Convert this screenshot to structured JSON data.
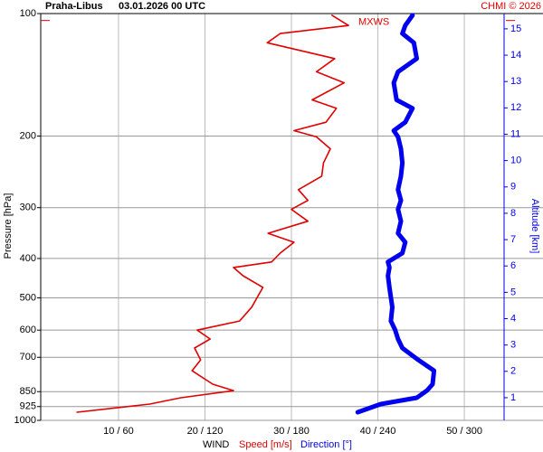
{
  "chart_data": {
    "type": "wind-profile",
    "station": "Praha-Libus",
    "title": "03.01.2026 00 UTC",
    "credit": "CHMI © 2026",
    "ylabel": "Pressure [hPa]",
    "y2label": "Altitude [km]",
    "xlabel": "WIND",
    "log_y": true,
    "grid": true,
    "y": [
      955,
      912,
      880,
      845,
      815,
      755,
      710,
      664,
      631,
      600,
      570,
      527,
      471,
      441,
      421,
      408,
      388,
      365,
      347,
      324,
      303,
      288,
      271,
      251,
      233,
      215,
      201,
      194,
      185,
      171,
      163,
      148,
      139,
      129,
      118,
      112,
      107,
      101
    ],
    "series": [
      {
        "name": "Speed [m/s]",
        "color": "#e00000",
        "values": [
          5.2,
          13.6,
          17.2,
          23.3,
          20.9,
          18.5,
          19.5,
          18.8,
          20.6,
          19.1,
          24.0,
          25.4,
          26.7,
          24.4,
          23.3,
          27.7,
          28.7,
          30.3,
          27.3,
          31.9,
          30.0,
          31.9,
          30.8,
          33.5,
          33.7,
          34.5,
          32.9,
          30.3,
          34.0,
          35.2,
          32.4,
          36.1,
          32.9,
          35.0,
          27.2,
          28.7,
          36.6,
          34.7
        ]
      },
      {
        "name": "Direction [°]",
        "color": "#0000ee",
        "axis": "x2",
        "values": [
          226,
          242,
          267,
          274,
          278,
          279,
          268,
          257,
          254,
          252,
          249,
          250,
          248,
          247,
          248,
          247,
          257,
          259,
          254,
          256,
          254,
          256,
          254,
          256,
          257,
          256,
          254,
          251,
          259,
          264,
          253,
          251,
          254,
          267,
          265,
          257,
          259,
          264
        ]
      }
    ],
    "xlim": [
      1,
      59.1
    ],
    "x2lim": [
      6,
      354.6
    ],
    "xticks": [
      {
        "value": 10,
        "label": "10 / 60"
      },
      {
        "value": 20,
        "label": "20 / 120"
      },
      {
        "value": 30,
        "label": "30 / 180"
      },
      {
        "value": 40,
        "label": "40 / 240"
      },
      {
        "value": 50,
        "label": "50 / 300"
      }
    ],
    "ylim": [
      1000,
      100
    ],
    "yticks": [
      100,
      200,
      300,
      400,
      500,
      600,
      700,
      850,
      925,
      1000
    ],
    "y2lim": [
      0.14,
      15.58
    ],
    "y2ticks": [
      1,
      2,
      3,
      4,
      5,
      6,
      7,
      8,
      9,
      10,
      11,
      12,
      13,
      14,
      15
    ],
    "annotation": {
      "text": "MXWS",
      "pressure": 104
    }
  }
}
